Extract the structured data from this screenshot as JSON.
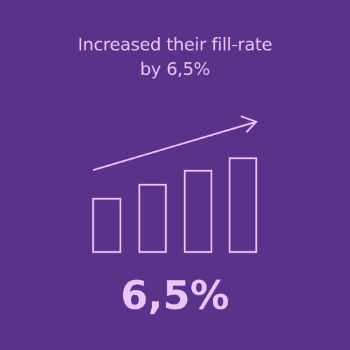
{
  "headline": [
    "Increased their fill-rate",
    "by 6,5%"
  ],
  "stat": "6,5%"
}
